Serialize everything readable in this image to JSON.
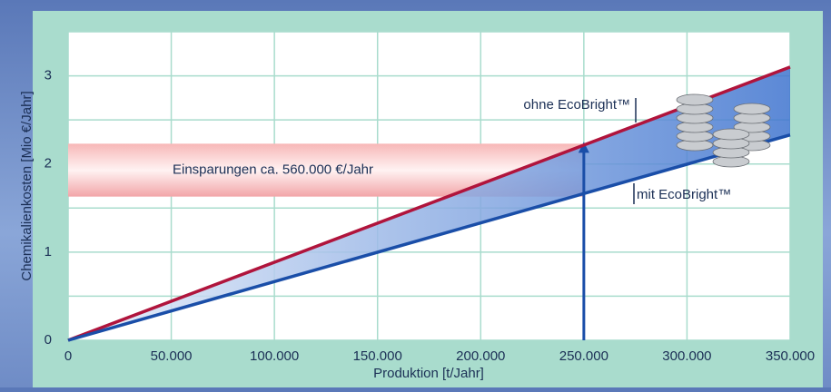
{
  "chart_data": {
    "type": "line",
    "x_label": "Produktion [t/Jahr]",
    "y_label": "Chemikalienkosten [Mio €/Jahr]",
    "x": [
      0,
      350000
    ],
    "series": [
      {
        "name": "ohne EcoBright™",
        "color": "#b0143c",
        "values": [
          0,
          3.1
        ]
      },
      {
        "name": "mit EcoBright™",
        "color": "#1a4ea8",
        "values": [
          0,
          2.33
        ]
      }
    ],
    "xlim": [
      0,
      350000
    ],
    "xticks": [
      0,
      {
        "value": 50000,
        "label": "50.000"
      },
      {
        "value": 100000,
        "label": "100.000"
      },
      {
        "value": 150000,
        "label": "150.000"
      },
      {
        "value": 200000,
        "label": "200.000"
      },
      {
        "value": 250000,
        "label": "250.000"
      },
      {
        "value": 300000,
        "label": "300.000"
      },
      {
        "value": 350000,
        "label": "350.000"
      }
    ],
    "ylim": [
      0,
      3.5
    ],
    "yticks": [
      0,
      1,
      2,
      3
    ],
    "ygrid": [
      0.5,
      1.5,
      2.5,
      3.5
    ],
    "grid": true,
    "annotation": {
      "text": "Einsparungen ca. 560.000 €/Jahr",
      "x": 250000,
      "y_low": 1.63,
      "y_high": 2.23
    }
  }
}
